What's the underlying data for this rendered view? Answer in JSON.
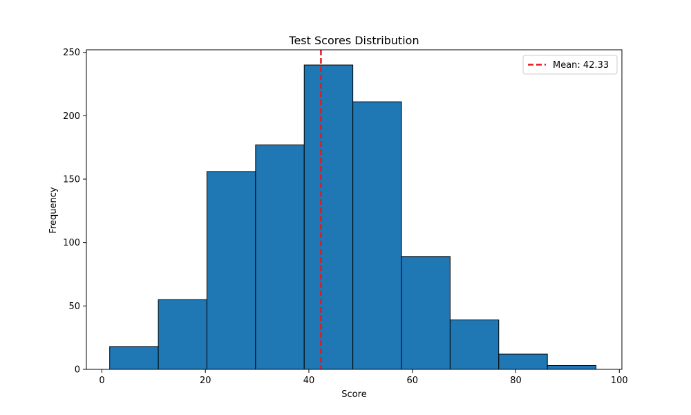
{
  "chart_data": {
    "type": "bar",
    "title": "Test Scores Distribution",
    "xlabel": "Score",
    "ylabel": "Frequency",
    "xlim": [
      -3,
      100.5
    ],
    "ylim": [
      0,
      252
    ],
    "bin_edges": [
      1.5,
      10.9,
      20.3,
      29.7,
      39.1,
      48.5,
      57.9,
      67.3,
      76.7,
      86.1,
      95.5
    ],
    "values": [
      18,
      55,
      156,
      177,
      240,
      211,
      89,
      39,
      12,
      3
    ],
    "x_ticks": [
      0,
      20,
      40,
      60,
      80,
      100
    ],
    "y_ticks": [
      0,
      50,
      100,
      150,
      200,
      250
    ],
    "x_tick_labels": [
      "0",
      "20",
      "40",
      "60",
      "80",
      "100"
    ],
    "y_tick_labels": [
      "0",
      "50",
      "100",
      "150",
      "200",
      "250"
    ],
    "mean_line": {
      "value": 42.33,
      "label": "Mean: 42.33"
    },
    "legend": {
      "placement": "top-right"
    },
    "grid": false,
    "colors": {
      "bar_fill": "#1f77b4",
      "bar_edge": "#000000",
      "mean_line": "#e31a1c"
    }
  }
}
